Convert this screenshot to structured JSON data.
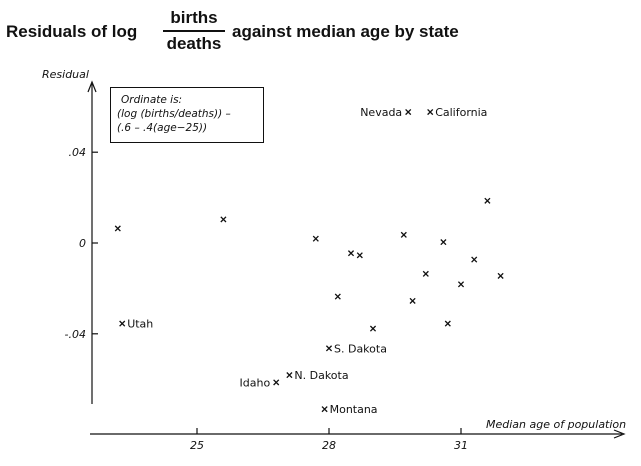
{
  "chart_data": {
    "type": "scatter",
    "title_prefix": "Residuals of log",
    "title_numerator": "births",
    "title_denominator": "deaths",
    "title_suffix": "against median age by state",
    "xlabel": "Median age of population",
    "ylabel": "Residual",
    "xlim": [
      23.0,
      32.7
    ],
    "ylim": [
      -0.07,
      0.07
    ],
    "x_ticks": [
      25,
      28,
      31
    ],
    "y_ticks": [
      0.04,
      0,
      -0.04
    ],
    "y_tick_labels": [
      ".04",
      "0",
      "-.04"
    ],
    "note_lines": [
      "Ordinate is:",
      "(log (births/deaths)) –",
      "(.6 – .4(age−25))"
    ],
    "points": [
      {
        "x": 23.2,
        "y": 0.0064,
        "label": ""
      },
      {
        "x": 23.3,
        "y": -0.0355,
        "label": "Utah"
      },
      {
        "x": 25.6,
        "y": 0.0104,
        "label": ""
      },
      {
        "x": 26.8,
        "y": -0.0614,
        "label": "Idaho"
      },
      {
        "x": 27.1,
        "y": -0.0582,
        "label": "N. Dakota"
      },
      {
        "x": 27.7,
        "y": 0.0019,
        "label": ""
      },
      {
        "x": 27.9,
        "y": -0.0732,
        "label": "Montana"
      },
      {
        "x": 28.0,
        "y": -0.0464,
        "label": "S. Dakota"
      },
      {
        "x": 28.2,
        "y": -0.0236,
        "label": ""
      },
      {
        "x": 28.5,
        "y": -0.0045,
        "label": ""
      },
      {
        "x": 28.7,
        "y": -0.0054,
        "label": ""
      },
      {
        "x": 29.0,
        "y": -0.0377,
        "label": ""
      },
      {
        "x": 29.7,
        "y": 0.0036,
        "label": ""
      },
      {
        "x": 29.8,
        "y": 0.0577,
        "label": "Nevada"
      },
      {
        "x": 29.9,
        "y": -0.0255,
        "label": ""
      },
      {
        "x": 30.2,
        "y": -0.0136,
        "label": ""
      },
      {
        "x": 30.3,
        "y": 0.0577,
        "label": "California"
      },
      {
        "x": 30.6,
        "y": 0.0004,
        "label": ""
      },
      {
        "x": 30.7,
        "y": -0.0355,
        "label": ""
      },
      {
        "x": 31.0,
        "y": -0.0182,
        "label": ""
      },
      {
        "x": 31.3,
        "y": -0.0073,
        "label": ""
      },
      {
        "x": 31.6,
        "y": 0.0186,
        "label": ""
      },
      {
        "x": 31.9,
        "y": -0.0145,
        "label": ""
      }
    ]
  }
}
